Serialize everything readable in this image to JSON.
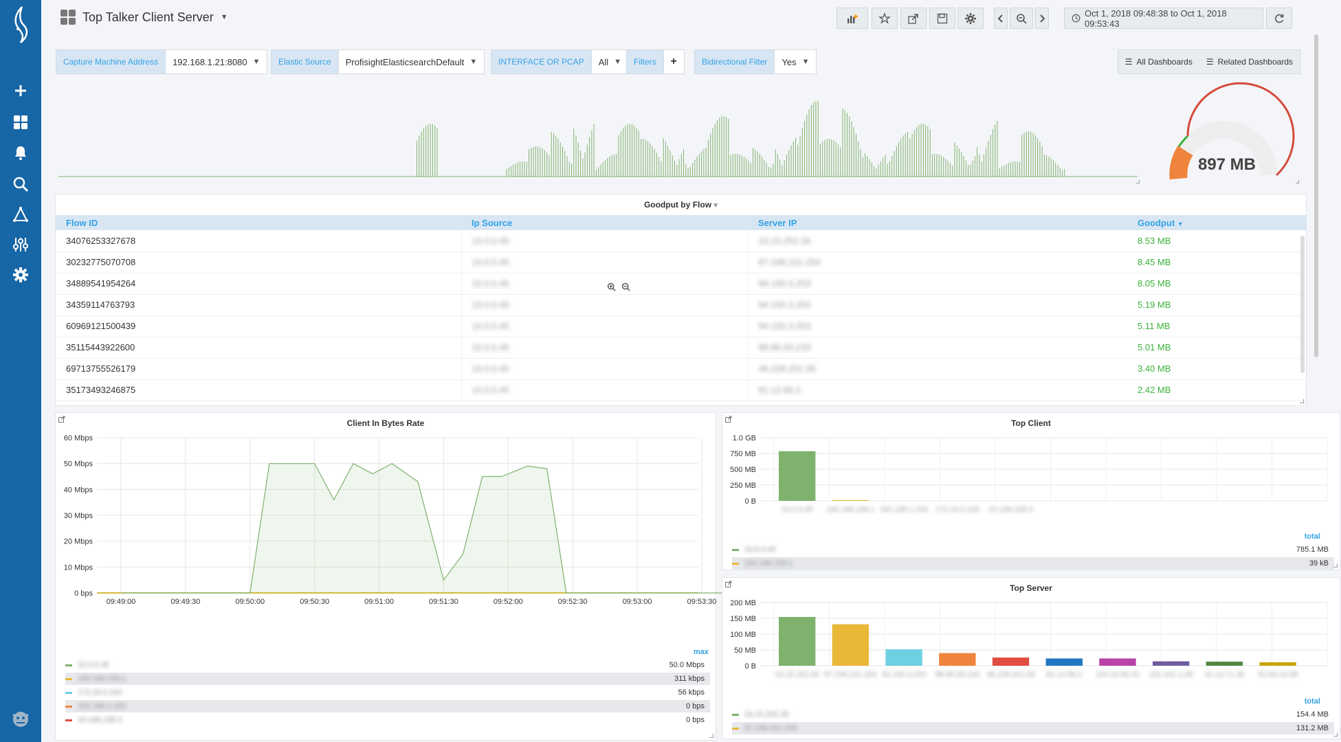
{
  "header": {
    "title": "Top Talker Client Server",
    "timerange": "Oct 1, 2018 09:48:38 to Oct 1, 2018 09:53:43"
  },
  "variables": [
    {
      "label": "Capture Machine Address",
      "value": "192.168.1.21:8080"
    },
    {
      "label": "Elastic Source",
      "value": "ProfisightElasticsearchDefault"
    },
    {
      "label": "INTERFACE OR PCAP",
      "value": "All"
    },
    {
      "label": "Filters",
      "value": "+"
    },
    {
      "label": "Bidirectional Filter",
      "value": "Yes"
    }
  ],
  "dashlinks": {
    "all": "All Dashboards",
    "related": "Related Dashboards"
  },
  "gauge": {
    "value": "897 MB",
    "fraction": 0.12
  },
  "goodput": {
    "title": "Goodput by Flow",
    "columns": [
      "Flow ID",
      "Ip Source",
      "Server IP",
      "Goodput"
    ],
    "rows": [
      {
        "flow": "34076253327678",
        "src": "10.0.0.45",
        "dst": "23.15.252.26",
        "good": "8.53 MB"
      },
      {
        "flow": "30232775070708",
        "src": "10.0.0.45",
        "dst": "87.248.221.254",
        "good": "8.45 MB"
      },
      {
        "flow": "34889541954264",
        "src": "10.0.0.45",
        "dst": "94.150.3.253",
        "good": "8.05 MB"
      },
      {
        "flow": "34359114763793",
        "src": "10.0.0.45",
        "dst": "94.150.3.253",
        "good": "5.19 MB"
      },
      {
        "flow": "60969121500439",
        "src": "10.0.0.45",
        "dst": "94.150.3.253",
        "good": "5.11 MB"
      },
      {
        "flow": "35115443922600",
        "src": "10.0.0.45",
        "dst": "88.86.93.233",
        "good": "5.01 MB"
      },
      {
        "flow": "69713755526179",
        "src": "10.0.0.45",
        "dst": "46.228.201.56",
        "good": "3.40 MB"
      },
      {
        "flow": "35173493246875",
        "src": "10.0.0.45",
        "dst": "81.12.86.2",
        "good": "2.42 MB"
      }
    ]
  },
  "client_rate": {
    "title": "Client In Bytes Rate",
    "legend_head": "max",
    "legend": [
      {
        "name": "10.0.0.45",
        "value": "50.0 Mbps",
        "color": "#7eb26d"
      },
      {
        "name": "192.168.158.1",
        "value": "311 kbps",
        "color": "#eab839"
      },
      {
        "name": "172.16.0.100",
        "value": "56 kbps",
        "color": "#6ed0e0"
      },
      {
        "name": "192.168.1.100",
        "value": "0 bps",
        "color": "#ef843c"
      },
      {
        "name": "10.168.158.3",
        "value": "0 bps",
        "color": "#e24d42"
      }
    ]
  },
  "top_client": {
    "title": "Top Client",
    "legend_head": "total",
    "legend": [
      {
        "name": "10.0.0.45",
        "value": "785.1 MB",
        "color": "#7eb26d"
      },
      {
        "name": "192.168.158.1",
        "value": "39 kB",
        "color": "#eab839"
      }
    ]
  },
  "top_server": {
    "title": "Top Server",
    "legend_head": "total",
    "legend": [
      {
        "name": "23.15.252.26",
        "value": "154.4 MB",
        "color": "#7eb26d"
      },
      {
        "name": "87.248.221.254",
        "value": "131.2 MB",
        "color": "#eab839"
      }
    ]
  },
  "chart_data": [
    {
      "type": "line",
      "title": "",
      "x": [
        0,
        4,
        8,
        10,
        12,
        14,
        16,
        18,
        20,
        22,
        24,
        26,
        28,
        30,
        32,
        34,
        36,
        38,
        40,
        42,
        44,
        46,
        48,
        50,
        52,
        54,
        56,
        58,
        60,
        62,
        64,
        66,
        68,
        70,
        72,
        74,
        76,
        78,
        80,
        82,
        84,
        86,
        88,
        90,
        92,
        94,
        96,
        98,
        100
      ],
      "values": [
        0,
        0,
        0,
        0,
        0,
        0,
        0,
        0,
        0,
        0,
        0,
        0,
        0,
        0,
        0.7,
        0,
        0,
        0,
        0.2,
        0.4,
        0.6,
        0.9,
        0.3,
        0.7,
        0.5,
        0.6,
        0.4,
        0.8,
        0.3,
        0.4,
        0.6,
        1.0,
        0.5,
        0.9,
        0.4,
        0.6,
        0.7,
        0.3,
        0.5,
        0.8,
        0.2,
        0.6,
        0.3,
        0,
        0,
        0,
        0,
        0,
        0
      ]
    },
    {
      "type": "area",
      "title": "Client In Bytes Rate",
      "x": [
        "09:49:00",
        "09:49:30",
        "09:50:00",
        "09:50:30",
        "09:51:00",
        "09:51:30",
        "09:52:00",
        "09:52:30",
        "09:53:00",
        "09:53:30"
      ],
      "ylim": [
        0,
        60
      ],
      "yticks": [
        "0 bps",
        "10 Mbps",
        "20 Mbps",
        "30 Mbps",
        "40 Mbps",
        "50 Mbps",
        "60 Mbps"
      ],
      "series": [
        {
          "name": "10.0.0.45",
          "color": "#7eb26d",
          "points": [
            [
              0,
              0
            ],
            [
              2.0,
              0
            ],
            [
              2.3,
              50
            ],
            [
              3.0,
              50
            ],
            [
              3.3,
              36
            ],
            [
              3.6,
              50
            ],
            [
              3.9,
              46
            ],
            [
              4.2,
              50
            ],
            [
              4.6,
              43
            ],
            [
              5.0,
              5
            ],
            [
              5.3,
              15
            ],
            [
              5.6,
              45
            ],
            [
              5.9,
              45
            ],
            [
              6.3,
              49
            ],
            [
              6.6,
              48
            ],
            [
              6.9,
              0
            ],
            [
              9.5,
              0
            ]
          ]
        }
      ]
    },
    {
      "type": "bar",
      "title": "Top Client",
      "ylim": [
        0,
        1000
      ],
      "yticks": [
        "0 B",
        "250 MB",
        "500 MB",
        "750 MB",
        "1.0 GB"
      ],
      "categories": [
        "10.0.0.45",
        "192.168.158.1",
        "192.168.1.100",
        "172.16.0.100",
        "10.168.158.3"
      ],
      "values": [
        785.1,
        0.04,
        0,
        0,
        0
      ],
      "colors": [
        "#7eb26d",
        "#eab839",
        "#6ed0e0",
        "#ef843c",
        "#e24d42"
      ]
    },
    {
      "type": "bar",
      "title": "Top Server",
      "ylim": [
        0,
        200
      ],
      "yticks": [
        "0 B",
        "50 MB",
        "100 MB",
        "150 MB",
        "200 MB"
      ],
      "categories": [
        "23.15.252.26",
        "87.248.221.254",
        "94.150.3.253",
        "88.86.93.233",
        "46.228.201.56",
        "81.12.86.2",
        "104.16.90.41",
        "151.101.1.69",
        "31.13.71.36",
        "52.84.14.99"
      ],
      "values": [
        154.4,
        131.2,
        52,
        40,
        26,
        23,
        23,
        14,
        13,
        11
      ],
      "colors": [
        "#7eb26d",
        "#eab839",
        "#6ed0e0",
        "#ef843c",
        "#e24d42",
        "#1f78c1",
        "#ba43a9",
        "#705da0",
        "#508642",
        "#cca300"
      ]
    }
  ]
}
